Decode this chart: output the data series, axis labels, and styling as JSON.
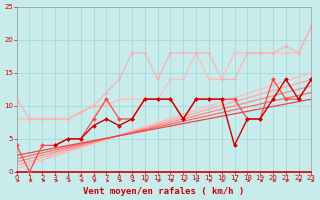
{
  "background_color": "#c8ecec",
  "grid_color": "#a0d4d4",
  "xlabel": "Vent moyen/en rafales ( km/h )",
  "xlabel_color": "#cc0000",
  "xlabel_fontsize": 6.5,
  "tick_color": "#cc0000",
  "tick_fontsize": 5.0,
  "xlim": [
    0,
    23
  ],
  "ylim": [
    0,
    25
  ],
  "yticks": [
    0,
    5,
    10,
    15,
    20,
    25
  ],
  "xticks": [
    0,
    1,
    2,
    3,
    4,
    5,
    6,
    7,
    8,
    9,
    10,
    11,
    12,
    13,
    14,
    15,
    16,
    17,
    18,
    19,
    20,
    21,
    22,
    23
  ],
  "lines": [
    {
      "x": [
        0,
        1,
        2,
        3,
        4,
        5,
        6,
        7,
        8,
        9,
        10,
        11,
        12,
        13,
        14,
        15,
        16,
        17,
        18,
        19,
        20,
        21,
        22,
        23
      ],
      "y": [
        8,
        8,
        8,
        8,
        8,
        9,
        10,
        10,
        11,
        11,
        11,
        11,
        14,
        14,
        18,
        14,
        14,
        18,
        18,
        18,
        18,
        18,
        18,
        22
      ],
      "color": "#ffbbbb",
      "linewidth": 0.9,
      "marker": "o",
      "markersize": 1.8,
      "alpha": 1.0,
      "zorder": 2
    },
    {
      "x": [
        0,
        1,
        2,
        3,
        4,
        5,
        6,
        7,
        8,
        9,
        10,
        11,
        12,
        13,
        14,
        15,
        16,
        17,
        18,
        19,
        20,
        21,
        22,
        23
      ],
      "y": [
        11,
        8,
        8,
        8,
        8,
        9,
        10,
        12,
        14,
        18,
        18,
        14,
        18,
        18,
        18,
        18,
        14,
        14,
        18,
        18,
        18,
        19,
        18,
        22
      ],
      "color": "#ffaaaa",
      "linewidth": 0.9,
      "marker": "o",
      "markersize": 1.8,
      "alpha": 0.85,
      "zorder": 2
    },
    {
      "x": [
        0,
        23
      ],
      "y": [
        0.5,
        15
      ],
      "color": "#ffbbbb",
      "linewidth": 1.0,
      "marker": null,
      "markersize": 0,
      "alpha": 1.0,
      "zorder": 1
    },
    {
      "x": [
        0,
        23
      ],
      "y": [
        1,
        14
      ],
      "color": "#ffaaaa",
      "linewidth": 1.0,
      "marker": null,
      "markersize": 0,
      "alpha": 1.0,
      "zorder": 1
    },
    {
      "x": [
        0,
        23
      ],
      "y": [
        1.5,
        13
      ],
      "color": "#ff8888",
      "linewidth": 0.9,
      "marker": null,
      "markersize": 0,
      "alpha": 1.0,
      "zorder": 1
    },
    {
      "x": [
        0,
        23
      ],
      "y": [
        2,
        12
      ],
      "color": "#ff6666",
      "linewidth": 0.9,
      "marker": null,
      "markersize": 0,
      "alpha": 1.0,
      "zorder": 1
    },
    {
      "x": [
        0,
        23
      ],
      "y": [
        2.5,
        11
      ],
      "color": "#ee4444",
      "linewidth": 0.9,
      "marker": null,
      "markersize": 0,
      "alpha": 1.0,
      "zorder": 1
    },
    {
      "x": [
        0,
        1,
        2,
        3,
        4,
        5,
        6,
        7,
        8,
        9,
        10,
        11,
        12,
        13,
        14,
        15,
        16,
        17,
        18,
        19,
        20,
        21,
        22,
        23
      ],
      "y": [
        4,
        0,
        4,
        4,
        5,
        5,
        8,
        11,
        8,
        8,
        11,
        11,
        11,
        8,
        11,
        11,
        11,
        11,
        8,
        8,
        14,
        11,
        11,
        14
      ],
      "color": "#ff4444",
      "linewidth": 0.9,
      "marker": "D",
      "markersize": 2.0,
      "alpha": 1.0,
      "zorder": 3
    },
    {
      "x": [
        3,
        4,
        5,
        6,
        7,
        8,
        9,
        10,
        11,
        12,
        13,
        14,
        15,
        16,
        17,
        18,
        19,
        20,
        21,
        22,
        23
      ],
      "y": [
        4,
        5,
        5,
        7,
        8,
        7,
        8,
        11,
        11,
        11,
        8,
        11,
        11,
        11,
        4,
        8,
        8,
        11,
        14,
        11,
        14
      ],
      "color": "#cc0000",
      "linewidth": 1.0,
      "marker": "D",
      "markersize": 2.0,
      "alpha": 1.0,
      "zorder": 3
    }
  ],
  "wind_arrows": [
    0,
    1,
    2,
    3,
    4,
    5,
    6,
    7,
    8,
    9,
    10,
    11,
    12,
    13,
    14,
    15,
    16,
    17,
    18,
    19,
    20,
    21,
    22,
    23
  ],
  "wind_arrow_color": "#cc0000",
  "spine_bottom_color": "#cc0000",
  "spine_bottom_lw": 1.2
}
